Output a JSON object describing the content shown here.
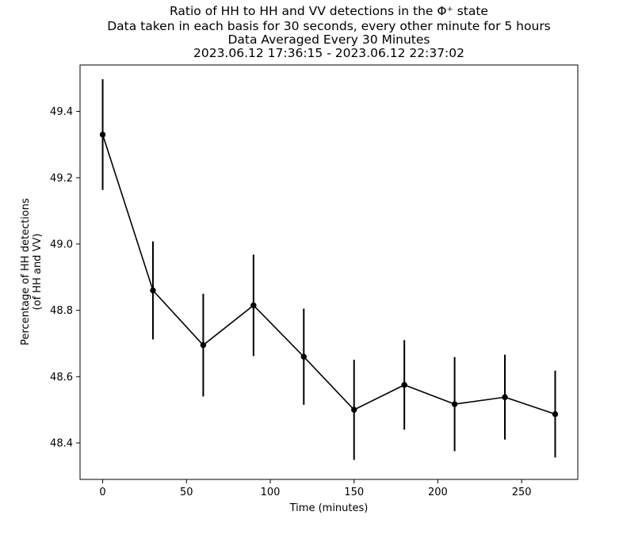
{
  "chart_data": {
    "type": "line",
    "title_lines": [
      "Ratio of HH to HH and VV detections in the Φ⁺ state",
      "Data taken in each basis for 30 seconds, every other minute for 5 hours",
      "Data Averaged Every 30 Minutes",
      "2023.06.12 17:36:15 - 2023.06.12 22:37:02"
    ],
    "xlabel": "Time (minutes)",
    "ylabel_lines": [
      "Percentage of HH detections",
      "(of HH and VV)"
    ],
    "xlim": [
      -13.5,
      283.5
    ],
    "ylim": [
      48.29,
      49.54
    ],
    "xticks": [
      0,
      50,
      100,
      150,
      200,
      250
    ],
    "xtick_labels": [
      "0",
      "50",
      "100",
      "150",
      "200",
      "250"
    ],
    "yticks": [
      48.4,
      48.6,
      48.8,
      49.0,
      49.2,
      49.4
    ],
    "ytick_labels": [
      "48.4",
      "48.6",
      "48.8",
      "49.0",
      "49.2",
      "49.4"
    ],
    "grid": false,
    "series": [
      {
        "x": [
          0,
          30,
          60,
          90,
          120,
          150,
          180,
          210,
          240,
          270
        ],
        "y": [
          49.33,
          48.86,
          48.695,
          48.815,
          48.66,
          48.5,
          48.575,
          48.517,
          48.538,
          48.487
        ],
        "yerr": [
          0.167,
          0.148,
          0.155,
          0.153,
          0.145,
          0.151,
          0.135,
          0.142,
          0.128,
          0.131
        ],
        "color": "#000000",
        "marker": "circle"
      }
    ]
  }
}
